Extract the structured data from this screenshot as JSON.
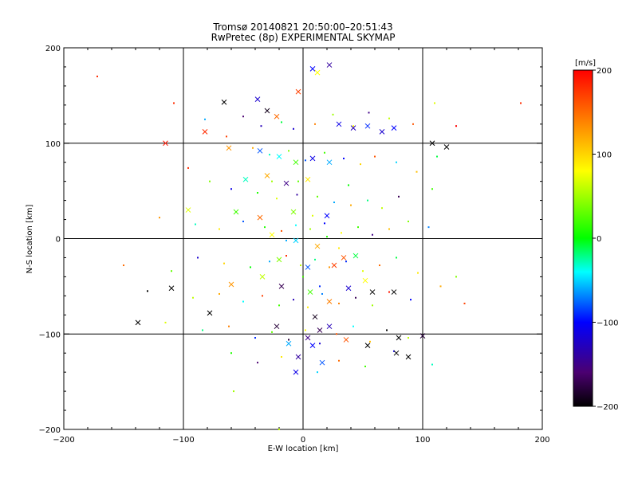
{
  "chart_data": {
    "type": "scatter",
    "title": "Tromsø 20140821 20:50:00–20:51:43",
    "subtitle": "RwPretec (8p) EXPERIMENTAL SKYMAP",
    "xlabel": "E-W location [km]",
    "ylabel": "N-S location [km]",
    "xlim": [
      -200,
      200
    ],
    "ylim": [
      -200,
      200
    ],
    "xticks": [
      -200,
      -100,
      0,
      100,
      200
    ],
    "yticks": [
      -200,
      -100,
      0,
      100,
      200
    ],
    "grid_lines": [
      -100,
      0,
      100
    ],
    "colorbar": {
      "unit_label": "[m/s]",
      "range": [
        -200,
        200
      ],
      "ticks": [
        200,
        100,
        0,
        -100,
        -200
      ],
      "colormap": "rainbow (black-purple-blue-cyan-green-yellow-red)"
    },
    "series": [
      {
        "marker": "dot",
        "points": [
          [
            -172,
            170,
            180
          ],
          [
            -108,
            142,
            180
          ],
          [
            -82,
            125,
            -60
          ],
          [
            -50,
            128,
            -160
          ],
          [
            -35,
            118,
            -130
          ],
          [
            -18,
            122,
            -10
          ],
          [
            -8,
            115,
            -120
          ],
          [
            10,
            120,
            140
          ],
          [
            25,
            130,
            50
          ],
          [
            42,
            118,
            80
          ],
          [
            55,
            132,
            -150
          ],
          [
            72,
            126,
            60
          ],
          [
            92,
            120,
            160
          ],
          [
            110,
            142,
            70
          ],
          [
            128,
            118,
            200
          ],
          [
            182,
            142,
            180
          ],
          [
            -64,
            107,
            170
          ],
          [
            -42,
            95,
            120
          ],
          [
            -28,
            88,
            -30
          ],
          [
            -12,
            92,
            40
          ],
          [
            2,
            82,
            -80
          ],
          [
            18,
            90,
            20
          ],
          [
            34,
            84,
            -100
          ],
          [
            48,
            78,
            100
          ],
          [
            60,
            86,
            160
          ],
          [
            78,
            80,
            -50
          ],
          [
            95,
            70,
            110
          ],
          [
            112,
            86,
            -10
          ],
          [
            -96,
            74,
            180
          ],
          [
            -78,
            60,
            40
          ],
          [
            -60,
            52,
            -110
          ],
          [
            -38,
            48,
            10
          ],
          [
            -22,
            42,
            70
          ],
          [
            -5,
            46,
            -140
          ],
          [
            12,
            44,
            30
          ],
          [
            26,
            38,
            -60
          ],
          [
            40,
            35,
            120
          ],
          [
            54,
            40,
            -20
          ],
          [
            66,
            32,
            60
          ],
          [
            80,
            44,
            -170
          ],
          [
            108,
            52,
            20
          ],
          [
            -120,
            22,
            130
          ],
          [
            -90,
            15,
            -30
          ],
          [
            -70,
            10,
            90
          ],
          [
            -50,
            18,
            -80
          ],
          [
            -32,
            12,
            10
          ],
          [
            -18,
            8,
            160
          ],
          [
            -6,
            14,
            -40
          ],
          [
            6,
            10,
            50
          ],
          [
            18,
            16,
            -100
          ],
          [
            32,
            6,
            80
          ],
          [
            46,
            12,
            20
          ],
          [
            58,
            4,
            -150
          ],
          [
            72,
            10,
            110
          ],
          [
            88,
            18,
            40
          ],
          [
            105,
            12,
            -70
          ],
          [
            -150,
            -28,
            150
          ],
          [
            -110,
            -34,
            30
          ],
          [
            -88,
            -20,
            -120
          ],
          [
            -66,
            -26,
            100
          ],
          [
            -44,
            -30,
            0
          ],
          [
            -28,
            -24,
            -60
          ],
          [
            -14,
            -18,
            180
          ],
          [
            -2,
            -28,
            60
          ],
          [
            10,
            -22,
            -20
          ],
          [
            22,
            -30,
            130
          ],
          [
            36,
            -24,
            -90
          ],
          [
            50,
            -34,
            70
          ],
          [
            64,
            -28,
            150
          ],
          [
            78,
            -20,
            -10
          ],
          [
            96,
            -36,
            90
          ],
          [
            128,
            -40,
            40
          ],
          [
            -130,
            -55,
            -200
          ],
          [
            -92,
            -62,
            60
          ],
          [
            -70,
            -58,
            120
          ],
          [
            -50,
            -66,
            -40
          ],
          [
            -34,
            -60,
            170
          ],
          [
            -20,
            -70,
            20
          ],
          [
            -8,
            -64,
            -130
          ],
          [
            4,
            -72,
            90
          ],
          [
            16,
            -58,
            -70
          ],
          [
            30,
            -68,
            140
          ],
          [
            44,
            -62,
            -170
          ],
          [
            58,
            -70,
            50
          ],
          [
            72,
            -56,
            190
          ],
          [
            90,
            -64,
            -100
          ],
          [
            115,
            -50,
            120
          ],
          [
            135,
            -68,
            170
          ],
          [
            -115,
            -88,
            70
          ],
          [
            -84,
            -96,
            -20
          ],
          [
            -62,
            -92,
            140
          ],
          [
            -40,
            -104,
            -90
          ],
          [
            -26,
            -98,
            30
          ],
          [
            -12,
            -106,
            -180
          ],
          [
            2,
            -96,
            80
          ],
          [
            14,
            -110,
            -120
          ],
          [
            28,
            -100,
            160
          ],
          [
            42,
            -92,
            -40
          ],
          [
            56,
            -108,
            110
          ],
          [
            70,
            -96,
            -200
          ],
          [
            88,
            -104,
            60
          ],
          [
            -60,
            -120,
            10
          ],
          [
            -38,
            -130,
            -160
          ],
          [
            -18,
            -124,
            90
          ],
          [
            12,
            -140,
            -50
          ],
          [
            30,
            -128,
            150
          ],
          [
            52,
            -134,
            20
          ],
          [
            76,
            -118,
            -110
          ],
          [
            -58,
            -160,
            50
          ],
          [
            -20,
            -200,
            60
          ],
          [
            108,
            -132,
            -30
          ],
          [
            -4,
            60,
            30
          ],
          [
            8,
            24,
            70
          ],
          [
            20,
            2,
            10
          ],
          [
            -14,
            -2,
            -60
          ],
          [
            30,
            -10,
            90
          ],
          [
            0,
            -40,
            20
          ],
          [
            14,
            -50,
            -90
          ],
          [
            -26,
            60,
            50
          ],
          [
            38,
            56,
            0
          ]
        ]
      },
      {
        "marker": "cross",
        "points": [
          [
            -115,
            100,
            190
          ],
          [
            -82,
            112,
            180
          ],
          [
            -66,
            143,
            -200
          ],
          [
            -38,
            146,
            -120
          ],
          [
            -30,
            134,
            -190
          ],
          [
            -22,
            128,
            150
          ],
          [
            -4,
            154,
            170
          ],
          [
            8,
            178,
            -100
          ],
          [
            12,
            174,
            80
          ],
          [
            22,
            182,
            -140
          ],
          [
            30,
            120,
            -110
          ],
          [
            42,
            116,
            -130
          ],
          [
            54,
            118,
            -90
          ],
          [
            66,
            112,
            -120
          ],
          [
            76,
            116,
            -100
          ],
          [
            108,
            100,
            -200
          ],
          [
            120,
            96,
            -200
          ],
          [
            -62,
            95,
            130
          ],
          [
            -36,
            92,
            -80
          ],
          [
            -20,
            86,
            -40
          ],
          [
            -6,
            80,
            20
          ],
          [
            8,
            84,
            -110
          ],
          [
            22,
            80,
            -60
          ],
          [
            -48,
            62,
            -30
          ],
          [
            -30,
            66,
            120
          ],
          [
            -14,
            58,
            -150
          ],
          [
            4,
            62,
            90
          ],
          [
            -96,
            30,
            70
          ],
          [
            -56,
            28,
            20
          ],
          [
            -36,
            22,
            150
          ],
          [
            -8,
            28,
            40
          ],
          [
            20,
            24,
            -100
          ],
          [
            -26,
            4,
            80
          ],
          [
            -6,
            -2,
            -50
          ],
          [
            12,
            -8,
            120
          ],
          [
            34,
            -20,
            160
          ],
          [
            -20,
            -22,
            40
          ],
          [
            4,
            -30,
            -80
          ],
          [
            26,
            -28,
            170
          ],
          [
            44,
            -18,
            -10
          ],
          [
            -110,
            -52,
            -200
          ],
          [
            -60,
            -48,
            130
          ],
          [
            -34,
            -40,
            60
          ],
          [
            -18,
            -50,
            -170
          ],
          [
            6,
            -56,
            20
          ],
          [
            22,
            -66,
            140
          ],
          [
            38,
            -52,
            -120
          ],
          [
            52,
            -44,
            80
          ],
          [
            -138,
            -88,
            -200
          ],
          [
            -78,
            -78,
            -200
          ],
          [
            -22,
            -92,
            -180
          ],
          [
            10,
            -82,
            -190
          ],
          [
            14,
            -96,
            -170
          ],
          [
            4,
            -104,
            -150
          ],
          [
            22,
            -92,
            -130
          ],
          [
            36,
            -106,
            160
          ],
          [
            -12,
            -110,
            -60
          ],
          [
            8,
            -112,
            -100
          ],
          [
            -4,
            -124,
            -140
          ],
          [
            16,
            -130,
            -80
          ],
          [
            -6,
            -140,
            -110
          ],
          [
            54,
            -112,
            -200
          ],
          [
            80,
            -104,
            -200
          ],
          [
            78,
            -120,
            -200
          ],
          [
            88,
            -124,
            -200
          ],
          [
            100,
            -102,
            -180
          ],
          [
            76,
            -56,
            -200
          ],
          [
            58,
            -56,
            -200
          ]
        ]
      }
    ]
  }
}
